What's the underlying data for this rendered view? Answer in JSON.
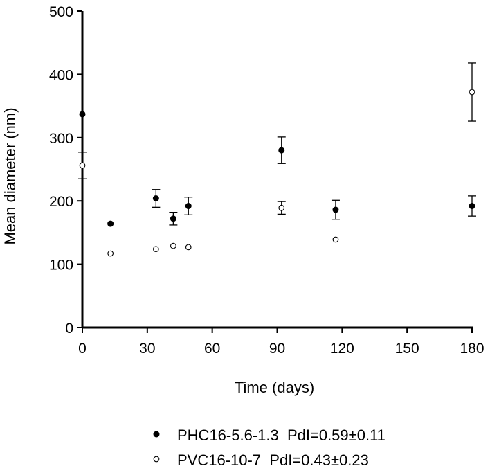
{
  "chart_data": {
    "type": "scatter",
    "xlabel": "Time (days)",
    "ylabel": "Mean diameter (nm)",
    "xlim": [
      0,
      180
    ],
    "ylim": [
      0,
      500
    ],
    "xticks": [
      "0",
      "30",
      "60",
      "90",
      "120",
      "150",
      "180"
    ],
    "yticks": [
      "0",
      "100",
      "200",
      "300",
      "400",
      "500"
    ],
    "grid": false,
    "legend_position": "bottom",
    "series": [
      {
        "name": "PHC16-5.6-1.3  PdI=0.59±0.11",
        "marker": "filled-circle",
        "color": "#000000",
        "points": [
          {
            "x": 0,
            "y": 337,
            "err": null
          },
          {
            "x": 13,
            "y": 164,
            "err": null
          },
          {
            "x": 34,
            "y": 204,
            "err": 14
          },
          {
            "x": 42,
            "y": 172,
            "err": 10
          },
          {
            "x": 49,
            "y": 192,
            "err": 14
          },
          {
            "x": 92,
            "y": 280,
            "err": 21
          },
          {
            "x": 117,
            "y": 186,
            "err": 15
          },
          {
            "x": 180,
            "y": 192,
            "err": 16
          }
        ]
      },
      {
        "name": "PVC16-10-7  PdI=0.43±0.23",
        "marker": "open-circle",
        "color": "#000000",
        "points": [
          {
            "x": 0,
            "y": 256,
            "err": 21
          },
          {
            "x": 13,
            "y": 117,
            "err": null
          },
          {
            "x": 34,
            "y": 124,
            "err": null
          },
          {
            "x": 42,
            "y": 129,
            "err": null
          },
          {
            "x": 49,
            "y": 127,
            "err": null
          },
          {
            "x": 92,
            "y": 189,
            "err": 10
          },
          {
            "x": 117,
            "y": 139,
            "err": null
          },
          {
            "x": 180,
            "y": 372,
            "err": 46
          }
        ]
      }
    ]
  }
}
